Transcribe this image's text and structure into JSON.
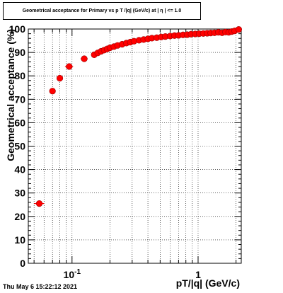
{
  "title": "Geometrical acceptance for Primary vs p T /|q| (GeV/c) at | η | <= 1.0",
  "timestamp": "Thu May  6 15:22:12 2021",
  "chart_data": {
    "type": "scatter",
    "title": "Geometrical acceptance for Primary vs p T /|q| (GeV/c) at | η | <= 1.0",
    "xlabel": "pT/|q| (GeV/c)",
    "ylabel": "Geometrical acceptance (%)",
    "xscale": "log",
    "xlim": [
      0.045,
      2.2
    ],
    "ylim": [
      0,
      100
    ],
    "grid": true,
    "x_tick_labels": [
      {
        "value": 0.1,
        "base": "10",
        "exp": "-1"
      },
      {
        "value": 1,
        "base": "1",
        "exp": ""
      }
    ],
    "y_tick_labels": [
      "0",
      "10",
      "20",
      "30",
      "40",
      "50",
      "60",
      "70",
      "80",
      "90",
      "100"
    ],
    "marker_color": "#ff0000",
    "series": [
      {
        "points": [
          {
            "x": 0.055,
            "y": 25.5,
            "xerr": 0.005
          },
          {
            "x": 0.07,
            "y": 73.5,
            "xerr": 0.003
          },
          {
            "x": 0.08,
            "y": 79.0,
            "xerr": 0.003
          },
          {
            "x": 0.095,
            "y": 84.0,
            "xerr": 0.007
          },
          {
            "x": 0.125,
            "y": 87.3,
            "xerr": 0.008
          },
          {
            "x": 0.15,
            "y": 89.0,
            "xerr": 0.006
          },
          {
            "x": 0.16,
            "y": 89.8
          },
          {
            "x": 0.17,
            "y": 90.5
          },
          {
            "x": 0.18,
            "y": 91.0
          },
          {
            "x": 0.19,
            "y": 91.5
          },
          {
            "x": 0.2,
            "y": 92.0
          },
          {
            "x": 0.215,
            "y": 92.5
          },
          {
            "x": 0.23,
            "y": 93.0
          },
          {
            "x": 0.25,
            "y": 93.5
          },
          {
            "x": 0.27,
            "y": 94.0
          },
          {
            "x": 0.29,
            "y": 94.4
          },
          {
            "x": 0.31,
            "y": 94.8
          },
          {
            "x": 0.34,
            "y": 95.2
          },
          {
            "x": 0.37,
            "y": 95.5
          },
          {
            "x": 0.4,
            "y": 95.8
          },
          {
            "x": 0.43,
            "y": 96.1
          },
          {
            "x": 0.47,
            "y": 96.3
          },
          {
            "x": 0.51,
            "y": 96.6
          },
          {
            "x": 0.55,
            "y": 96.8
          },
          {
            "x": 0.6,
            "y": 97.0
          },
          {
            "x": 0.65,
            "y": 97.2
          },
          {
            "x": 0.7,
            "y": 97.3
          },
          {
            "x": 0.76,
            "y": 97.5
          },
          {
            "x": 0.82,
            "y": 97.6
          },
          {
            "x": 0.88,
            "y": 97.8
          },
          {
            "x": 0.95,
            "y": 97.9
          },
          {
            "x": 1.02,
            "y": 98.0
          },
          {
            "x": 1.1,
            "y": 98.1
          },
          {
            "x": 1.18,
            "y": 98.2
          },
          {
            "x": 1.26,
            "y": 98.3
          },
          {
            "x": 1.35,
            "y": 98.4
          },
          {
            "x": 1.45,
            "y": 98.6
          },
          {
            "x": 1.55,
            "y": 98.4
          },
          {
            "x": 1.65,
            "y": 98.7
          },
          {
            "x": 1.75,
            "y": 98.6
          },
          {
            "x": 1.85,
            "y": 98.9
          },
          {
            "x": 1.95,
            "y": 99.2
          },
          {
            "x": 2.1,
            "y": 99.8
          }
        ]
      }
    ]
  }
}
